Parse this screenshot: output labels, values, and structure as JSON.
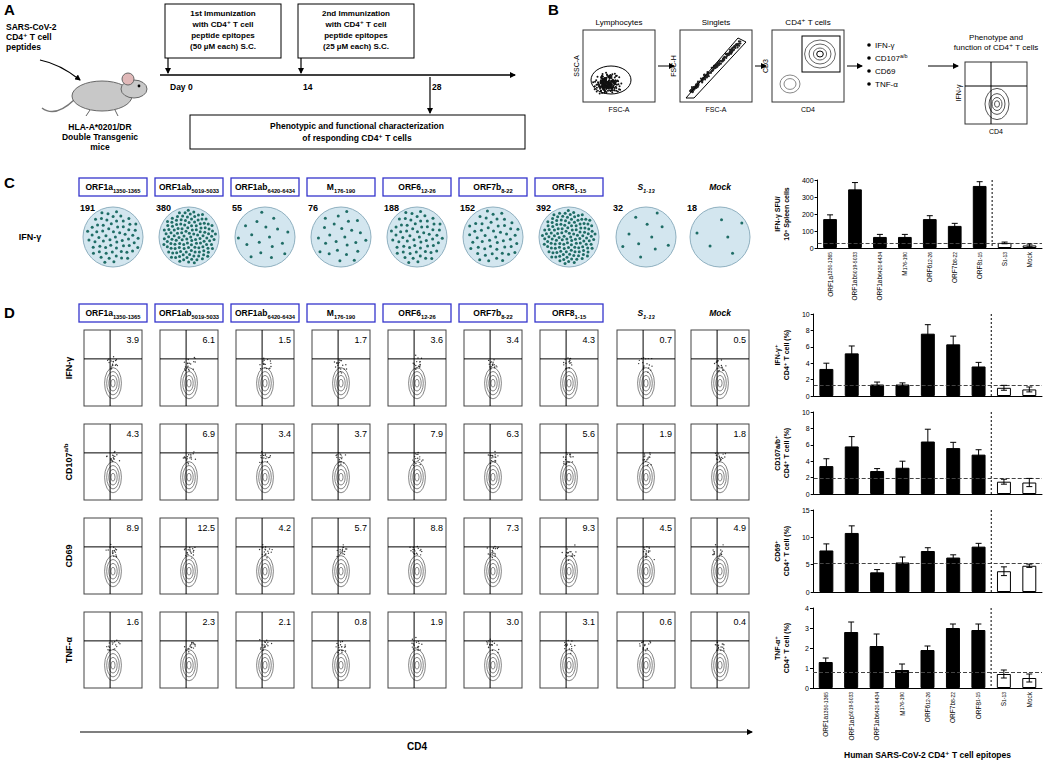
{
  "panels": {
    "A": {
      "label": "A",
      "peptide_label": [
        "SARS-CoV-2",
        "CD4⁺ T cell",
        "peptides"
      ],
      "mouse_label": [
        "HLA-A*0201/DR",
        "Double Transgenic",
        "mice"
      ],
      "timeline": [
        {
          "day": "Day 0",
          "box": [
            "1st Immunization",
            "with CD4⁺ T cell",
            "peptide epitopes",
            "(50 µM each) S.C."
          ]
        },
        {
          "day": "14",
          "box": [
            "2nd Immunization",
            "with CD4⁺ T cell",
            "peptide epitopes",
            "(25 µM each) S.C."
          ]
        },
        {
          "day": "28"
        }
      ],
      "readout": [
        "Phenotypic and functional characterization",
        "of responding CD4⁺ T cells"
      ]
    },
    "B": {
      "label": "B",
      "gates": [
        {
          "title": "Lymphocytes",
          "x": "FSC-A",
          "y": "SSC-A"
        },
        {
          "title": "Singlets",
          "x": "FSC-A",
          "y": "FSC-H"
        },
        {
          "title": "CD4⁺ T cells",
          "x": "CD4",
          "y": "CD3"
        }
      ],
      "markers": [
        {
          "base": "IFN-γ"
        },
        {
          "base": "CD107",
          "sup": "a/b"
        },
        {
          "base": "CD69"
        },
        {
          "base": "TNF-α"
        }
      ],
      "final": {
        "title": [
          "Phenotype and",
          "function of CD4⁺ T cells"
        ],
        "x": "CD4",
        "y": "IFN-γ"
      }
    },
    "C": {
      "label": "C",
      "row_label": "IFN-γ",
      "epitopes": [
        {
          "base": "ORF1a",
          "sub": "1350-1365",
          "count": 191
        },
        {
          "base": "ORF1ab",
          "sub": "5019-5033",
          "count": 380
        },
        {
          "base": "ORF1ab",
          "sub": "6420-6434",
          "count": 55
        },
        {
          "base": "M",
          "sub": "176-190",
          "count": 76
        },
        {
          "base": "ORF6",
          "sub": "12-26",
          "count": 188
        },
        {
          "base": "ORF7b",
          "sub": "8-22",
          "count": 152
        },
        {
          "base": "ORF8",
          "sub": "1-15",
          "count": 392
        }
      ],
      "controls": [
        {
          "base": "S",
          "sub": "1-13",
          "count": 32
        },
        {
          "base": "Mock",
          "count": 18
        }
      ]
    },
    "D": {
      "label": "D",
      "epitope_columns": [
        {
          "base": "ORF1a",
          "sub": "1350-1365"
        },
        {
          "base": "ORF1ab",
          "sub": "5019-5033"
        },
        {
          "base": "ORF1ab",
          "sub": "6420-6434"
        },
        {
          "base": "M",
          "sub": "176-190"
        },
        {
          "base": "ORF6",
          "sub": "12-26"
        },
        {
          "base": "ORF7b",
          "sub": "8-22"
        },
        {
          "base": "ORF8",
          "sub": "1-15"
        }
      ],
      "control_columns": [
        {
          "base": "S",
          "sub": "1-13"
        },
        {
          "base": "Mock"
        }
      ],
      "rows": [
        {
          "base": "IFN-γ",
          "values": [
            "3.9",
            "6.1",
            "1.5",
            "1.7",
            "3.6",
            "3.4",
            "4.3",
            "0.7",
            "0.5"
          ]
        },
        {
          "base": "CD107",
          "sup": "a/b",
          "values": [
            "4.3",
            "6.9",
            "3.4",
            "3.7",
            "7.9",
            "6.3",
            "5.6",
            "1.9",
            "1.8"
          ]
        },
        {
          "base": "CD69",
          "values": [
            "8.9",
            "12.5",
            "4.2",
            "5.7",
            "8.8",
            "7.3",
            "9.3",
            "4.5",
            "4.9"
          ]
        },
        {
          "base": "TNF-α",
          "values": [
            "1.6",
            "2.3",
            "2.1",
            "0.8",
            "1.9",
            "3.0",
            "3.1",
            "0.6",
            "0.4"
          ]
        }
      ],
      "x_axis": "CD4"
    }
  },
  "chart_data": [
    {
      "type": "bar",
      "categories": [
        "ORF1a1350-1365",
        "ORF1ab5019-5033",
        "ORF1ab6420-6434",
        "M176-190",
        "ORF612-26",
        "ORF7b8-22",
        "ORF81-15",
        "S1-13",
        "Mock"
      ],
      "values": [
        170,
        345,
        65,
        65,
        170,
        130,
        365,
        30,
        15
      ],
      "errors": [
        25,
        40,
        15,
        15,
        20,
        15,
        25,
        5,
        8
      ],
      "colors": [
        "#000000",
        "#000000",
        "#000000",
        "#000000",
        "#000000",
        "#000000",
        "#000000",
        "#ffffff",
        "#ffffff"
      ],
      "threshold": 30,
      "ylabel": "IFN-γ SFU/\n10⁶ Spleen cells",
      "ylim": [
        0,
        400
      ],
      "yticks": [
        0,
        100,
        200,
        300,
        400
      ],
      "grid": false
    },
    {
      "type": "bar",
      "categories": [
        "ORF1a1350-1365",
        "ORF1ab5019-5033",
        "ORF1ab6420-6434",
        "M176-190",
        "ORF612-26",
        "ORF7b8-22",
        "ORF81-15",
        "S1-13",
        "Mock"
      ],
      "values": [
        3.3,
        5.2,
        1.4,
        1.4,
        7.6,
        6.3,
        3.6,
        1.0,
        0.8
      ],
      "errors": [
        0.7,
        0.9,
        0.3,
        0.2,
        1.1,
        1.0,
        0.5,
        0.3,
        0.3
      ],
      "colors": [
        "#000000",
        "#000000",
        "#000000",
        "#000000",
        "#000000",
        "#000000",
        "#000000",
        "#ffffff",
        "#ffffff"
      ],
      "threshold": 1.3,
      "ylabel": "IFN-γ⁺\nCD4⁺ T cell (%)",
      "ylim": [
        0,
        10
      ],
      "yticks": [
        0,
        2,
        4,
        6,
        8,
        10
      ],
      "grid": false,
      "tick_labels": "y"
    },
    {
      "type": "bar",
      "categories": [
        "ORF1a1350-1365",
        "ORF1ab5019-5033",
        "ORF1ab6420-6434",
        "M176-190",
        "ORF612-26",
        "ORF7b8-22",
        "ORF81-15",
        "S1-13",
        "Mock"
      ],
      "values": [
        3.4,
        5.8,
        2.8,
        3.2,
        6.4,
        5.6,
        4.8,
        1.5,
        1.4
      ],
      "errors": [
        0.9,
        1.2,
        0.3,
        0.8,
        1.5,
        0.7,
        0.6,
        0.3,
        0.5
      ],
      "colors": [
        "#000000",
        "#000000",
        "#000000",
        "#000000",
        "#000000",
        "#000000",
        "#000000",
        "#ffffff",
        "#ffffff"
      ],
      "threshold": 1.9,
      "ylabel": "CD107a/b⁺\nCD4⁺ T cell (%)",
      "ylim": [
        0,
        10
      ],
      "yticks": [
        0,
        2,
        4,
        6,
        8,
        10
      ],
      "grid": false,
      "tick_labels": "y"
    },
    {
      "type": "bar",
      "categories": [
        "ORF1a1350-1365",
        "ORF1ab5019-5033",
        "ORF1ab6420-6434",
        "M176-190",
        "ORF612-26",
        "ORF7b8-22",
        "ORF81-15",
        "S1-13",
        "Mock"
      ],
      "values": [
        7.6,
        10.8,
        3.6,
        5.4,
        7.5,
        6.3,
        8.3,
        3.8,
        4.8
      ],
      "errors": [
        1.2,
        1.3,
        0.5,
        1.0,
        0.6,
        0.5,
        0.6,
        0.8,
        0.3
      ],
      "colors": [
        "#000000",
        "#000000",
        "#000000",
        "#000000",
        "#000000",
        "#000000",
        "#000000",
        "#ffffff",
        "#ffffff"
      ],
      "threshold": 5.3,
      "ylabel": "CD69⁺\nCD4⁺ T cell (%)",
      "ylim": [
        0,
        15
      ],
      "yticks": [
        0,
        5,
        10,
        15
      ],
      "grid": false,
      "tick_labels": "y"
    },
    {
      "type": "bar",
      "categories": [
        "ORF1a1350-1365",
        "ORF1ab5019-5033",
        "ORF1ab6420-6434",
        "M176-190",
        "ORF612-26",
        "ORF7b8-22",
        "ORF81-15",
        "S1-13",
        "Mock"
      ],
      "values": [
        1.3,
        2.8,
        2.1,
        0.9,
        1.9,
        3.0,
        2.9,
        0.7,
        0.5
      ],
      "errors": [
        0.2,
        0.5,
        0.6,
        0.3,
        0.2,
        0.2,
        0.3,
        0.2,
        0.2
      ],
      "colors": [
        "#000000",
        "#000000",
        "#000000",
        "#000000",
        "#000000",
        "#000000",
        "#000000",
        "#ffffff",
        "#ffffff"
      ],
      "threshold": 0.8,
      "ylabel": "TNF-α⁺\nCD4⁺ T cell (%)",
      "xlabel": "Human SARS-CoV-2 CD4⁺ T cell epitopes",
      "ylim": [
        0,
        4
      ],
      "yticks": [
        0,
        1,
        2,
        3,
        4
      ],
      "grid": false
    }
  ]
}
